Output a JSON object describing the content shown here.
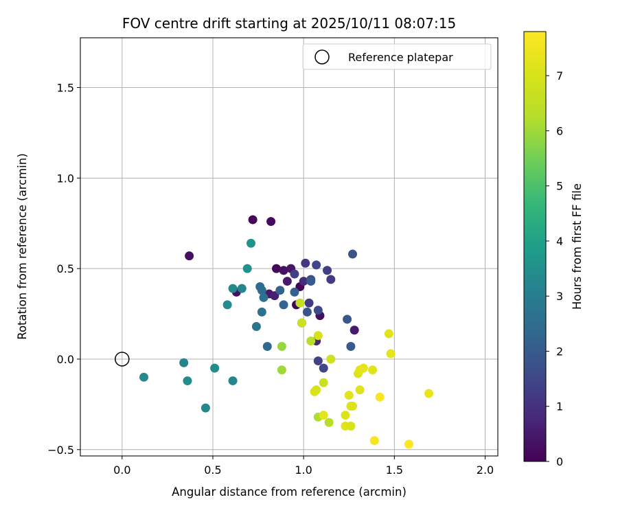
{
  "chart_data": {
    "type": "scatter",
    "title": "FOV centre drift starting at 2025/10/11 08:07:15",
    "xlabel": "Angular distance from reference (arcmin)",
    "ylabel": "Rotation from reference (arcmin)",
    "xlim": [
      -0.23,
      2.07
    ],
    "ylim": [
      -0.535,
      1.775
    ],
    "xticks": [
      0.0,
      0.5,
      1.0,
      1.5,
      2.0
    ],
    "xtick_labels": [
      "0.0",
      "0.5",
      "1.0",
      "1.5",
      "2.0"
    ],
    "yticks": [
      -0.5,
      0.0,
      0.5,
      1.0,
      1.5
    ],
    "ytick_labels": [
      "−0.5",
      "0.0",
      "0.5",
      "1.0",
      "1.5"
    ],
    "grid": true,
    "legend": {
      "position": "top-right",
      "entries": [
        "Reference platepar"
      ]
    },
    "reference_point": {
      "x": 0.0,
      "y": 0.0,
      "marker": "open-circle"
    },
    "colorbar": {
      "label": "Hours from first FF file",
      "range": [
        0,
        7.8
      ],
      "ticks": [
        0,
        1,
        2,
        3,
        4,
        5,
        6,
        7
      ],
      "tick_labels": [
        "0",
        "1",
        "2",
        "3",
        "4",
        "5",
        "6",
        "7"
      ],
      "colormap": "viridis"
    },
    "points": [
      {
        "x": 0.37,
        "y": 0.57,
        "h": 0.3
      },
      {
        "x": 0.72,
        "y": 0.77,
        "h": 0.1
      },
      {
        "x": 0.82,
        "y": 0.76,
        "h": 0.2
      },
      {
        "x": 0.85,
        "y": 0.5,
        "h": 0.15
      },
      {
        "x": 0.89,
        "y": 0.49,
        "h": 0.35
      },
      {
        "x": 0.93,
        "y": 0.5,
        "h": 0.4
      },
      {
        "x": 0.91,
        "y": 0.43,
        "h": 0.5
      },
      {
        "x": 0.98,
        "y": 0.4,
        "h": 0.05
      },
      {
        "x": 0.96,
        "y": 0.3,
        "h": 0.1
      },
      {
        "x": 0.63,
        "y": 0.37,
        "h": 0.3
      },
      {
        "x": 0.81,
        "y": 0.36,
        "h": 0.5
      },
      {
        "x": 0.84,
        "y": 0.35,
        "h": 0.6
      },
      {
        "x": 1.09,
        "y": 0.24,
        "h": 0.3
      },
      {
        "x": 1.28,
        "y": 0.16,
        "h": 0.5
      },
      {
        "x": 1.07,
        "y": 0.1,
        "h": 0.8
      },
      {
        "x": 1.0,
        "y": 0.43,
        "h": 0.9
      },
      {
        "x": 1.01,
        "y": 0.53,
        "h": 1.1
      },
      {
        "x": 1.03,
        "y": 0.31,
        "h": 1.2
      },
      {
        "x": 0.95,
        "y": 0.47,
        "h": 1.3
      },
      {
        "x": 1.07,
        "y": 0.52,
        "h": 1.5
      },
      {
        "x": 1.13,
        "y": 0.49,
        "h": 1.3
      },
      {
        "x": 1.15,
        "y": 0.44,
        "h": 1.2
      },
      {
        "x": 1.08,
        "y": 0.27,
        "h": 1.6
      },
      {
        "x": 1.04,
        "y": 0.44,
        "h": 1.7
      },
      {
        "x": 1.02,
        "y": 0.26,
        "h": 1.8
      },
      {
        "x": 1.08,
        "y": -0.01,
        "h": 1.4
      },
      {
        "x": 1.11,
        "y": -0.05,
        "h": 1.5
      },
      {
        "x": 1.27,
        "y": 0.58,
        "h": 1.8
      },
      {
        "x": 1.24,
        "y": 0.22,
        "h": 1.9
      },
      {
        "x": 1.26,
        "y": 0.07,
        "h": 2.0
      },
      {
        "x": 1.04,
        "y": 0.43,
        "h": 2.0
      },
      {
        "x": 0.99,
        "y": 0.2,
        "h": 2.1
      },
      {
        "x": 0.95,
        "y": 0.37,
        "h": 2.1
      },
      {
        "x": 0.87,
        "y": 0.38,
        "h": 2.2
      },
      {
        "x": 0.89,
        "y": 0.3,
        "h": 2.3
      },
      {
        "x": 0.76,
        "y": 0.4,
        "h": 2.4
      },
      {
        "x": 0.77,
        "y": 0.38,
        "h": 2.5
      },
      {
        "x": 0.78,
        "y": 0.34,
        "h": 2.6
      },
      {
        "x": 0.77,
        "y": 0.26,
        "h": 2.7
      },
      {
        "x": 0.74,
        "y": 0.18,
        "h": 2.7
      },
      {
        "x": 0.8,
        "y": 0.07,
        "h": 2.4
      },
      {
        "x": 0.61,
        "y": 0.39,
        "h": 3.3
      },
      {
        "x": 0.66,
        "y": 0.39,
        "h": 3.2
      },
      {
        "x": 0.58,
        "y": 0.3,
        "h": 3.4
      },
      {
        "x": 0.69,
        "y": 0.5,
        "h": 3.5
      },
      {
        "x": 0.71,
        "y": 0.64,
        "h": 3.6
      },
      {
        "x": 0.12,
        "y": -0.1,
        "h": 3.3
      },
      {
        "x": 0.34,
        "y": -0.02,
        "h": 3.2
      },
      {
        "x": 0.36,
        "y": -0.12,
        "h": 3.4
      },
      {
        "x": 0.46,
        "y": -0.27,
        "h": 3.3
      },
      {
        "x": 0.51,
        "y": -0.05,
        "h": 3.4
      },
      {
        "x": 0.61,
        "y": -0.12,
        "h": 3.2
      },
      {
        "x": 0.88,
        "y": 0.07,
        "h": 5.9
      },
      {
        "x": 0.88,
        "y": -0.06,
        "h": 6.0
      },
      {
        "x": 1.04,
        "y": 0.1,
        "h": 6.3
      },
      {
        "x": 1.08,
        "y": -0.32,
        "h": 6.2
      },
      {
        "x": 1.14,
        "y": -0.35,
        "h": 6.3
      },
      {
        "x": 0.98,
        "y": 0.31,
        "h": 6.6
      },
      {
        "x": 0.99,
        "y": 0.2,
        "h": 6.7
      },
      {
        "x": 1.08,
        "y": 0.13,
        "h": 7.0
      },
      {
        "x": 1.11,
        "y": -0.13,
        "h": 6.7
      },
      {
        "x": 1.15,
        "y": 0.0,
        "h": 6.8
      },
      {
        "x": 1.06,
        "y": -0.18,
        "h": 7.1
      },
      {
        "x": 1.07,
        "y": -0.17,
        "h": 7.0
      },
      {
        "x": 1.11,
        "y": -0.31,
        "h": 7.3
      },
      {
        "x": 1.23,
        "y": -0.31,
        "h": 7.1
      },
      {
        "x": 1.23,
        "y": -0.37,
        "h": 7.2
      },
      {
        "x": 1.25,
        "y": -0.2,
        "h": 7.2
      },
      {
        "x": 1.26,
        "y": -0.26,
        "h": 7.2
      },
      {
        "x": 1.27,
        "y": -0.26,
        "h": 7.1
      },
      {
        "x": 1.26,
        "y": -0.37,
        "h": 7.0
      },
      {
        "x": 1.3,
        "y": -0.08,
        "h": 7.1
      },
      {
        "x": 1.31,
        "y": -0.06,
        "h": 7.2
      },
      {
        "x": 1.33,
        "y": -0.05,
        "h": 7.3
      },
      {
        "x": 1.31,
        "y": -0.17,
        "h": 7.2
      },
      {
        "x": 1.38,
        "y": -0.06,
        "h": 7.2
      },
      {
        "x": 1.47,
        "y": 0.14,
        "h": 7.2
      },
      {
        "x": 1.48,
        "y": 0.03,
        "h": 7.3
      },
      {
        "x": 1.39,
        "y": -0.45,
        "h": 7.6
      },
      {
        "x": 1.42,
        "y": -0.21,
        "h": 7.7
      },
      {
        "x": 1.58,
        "y": -0.47,
        "h": 7.8
      },
      {
        "x": 1.69,
        "y": -0.19,
        "h": 7.4
      }
    ]
  }
}
